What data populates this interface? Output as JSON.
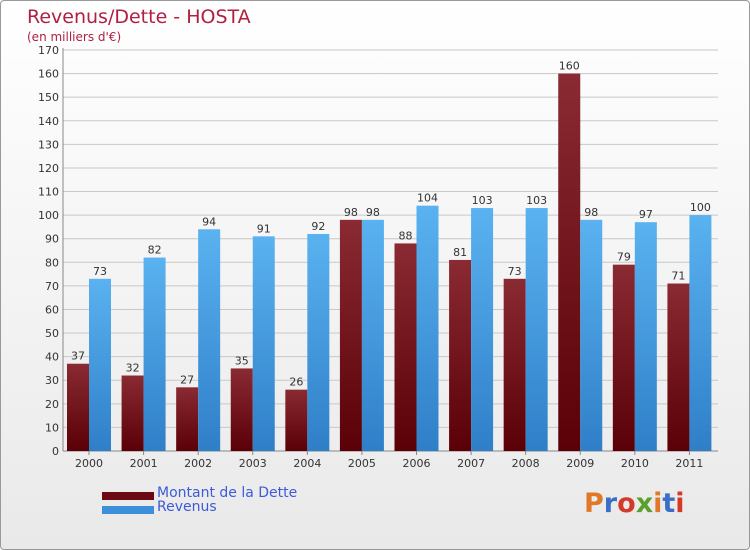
{
  "header": {
    "title": "Revenus/Dette - HOSTA",
    "subtitle": "(en milliers d'€)"
  },
  "legend": {
    "items": [
      {
        "label": "Montant de la Dette",
        "color": "#6b0a14"
      },
      {
        "label": "Revenus",
        "color": "#3d8fd9"
      }
    ]
  },
  "logo": {
    "text": "Proxiti",
    "letter_colors": [
      "#e0782a",
      "#3a6ec8",
      "#d23a2a",
      "#5aa02a",
      "#e0782a",
      "#3a6ec8",
      "#d23a2a"
    ]
  },
  "chart_data": {
    "type": "bar",
    "title": "Revenus/Dette - HOSTA",
    "subtitle": "(en milliers d'€)",
    "categories": [
      "2000",
      "2001",
      "2002",
      "2003",
      "2004",
      "2005",
      "2006",
      "2007",
      "2008",
      "2009",
      "2010",
      "2011"
    ],
    "series": [
      {
        "name": "Montant de la Dette",
        "values": [
          37,
          32,
          27,
          35,
          26,
          98,
          88,
          81,
          73,
          160,
          79,
          71
        ],
        "color": "#7a1a22"
      },
      {
        "name": "Revenus",
        "values": [
          73,
          82,
          94,
          91,
          92,
          98,
          104,
          103,
          103,
          98,
          97,
          100
        ],
        "color": "#4aa3e8"
      }
    ],
    "ylim": [
      0,
      170
    ],
    "yticks": [
      0,
      10,
      20,
      30,
      40,
      50,
      60,
      70,
      80,
      90,
      100,
      110,
      120,
      130,
      140,
      150,
      160,
      170
    ],
    "grid": true,
    "legend_position": "bottom-left"
  }
}
